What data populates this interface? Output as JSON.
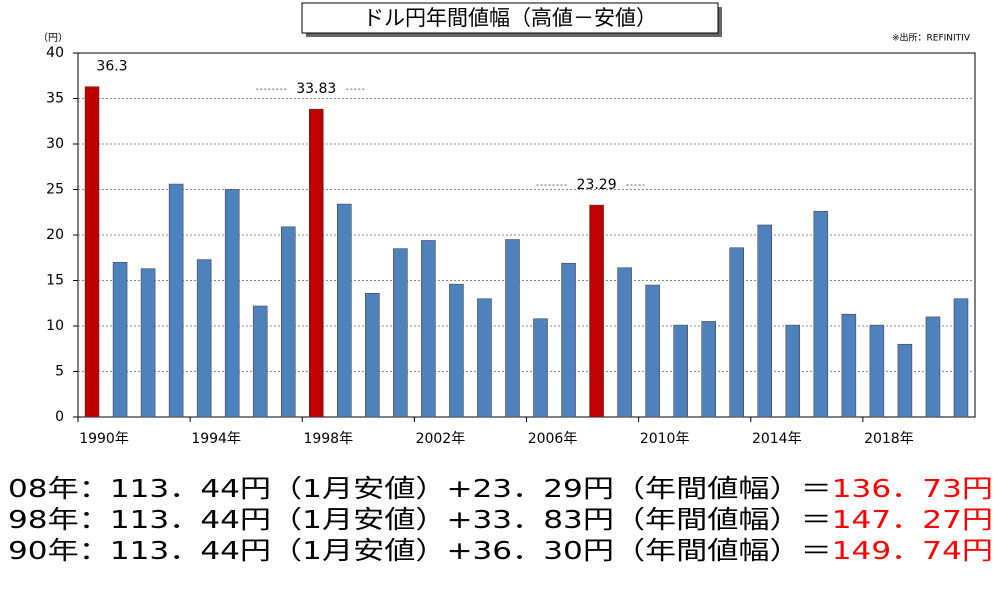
{
  "chart_data": {
    "type": "bar",
    "title": "ドル円年間値幅（高値－安値）",
    "y_unit": "（円）",
    "source": "※出所：REFINITIV",
    "categories": [
      "1990年",
      null,
      null,
      null,
      "1994年",
      null,
      null,
      null,
      "1998年",
      null,
      null,
      null,
      "2002年",
      null,
      null,
      null,
      "2006年",
      null,
      null,
      null,
      "2010年",
      null,
      null,
      null,
      "2014年",
      null,
      null,
      null,
      "2018年",
      null,
      null,
      null
    ],
    "values": [
      36.3,
      17,
      16.3,
      25.6,
      17.3,
      25,
      12.2,
      20.9,
      33.83,
      23.4,
      13.6,
      18.5,
      19.4,
      14.6,
      13,
      19.5,
      10.8,
      16.9,
      23.29,
      16.4,
      14.5,
      10.1,
      10.5,
      18.6,
      21.1,
      10.1,
      22.6,
      11.3,
      10.1,
      8,
      11,
      13
    ],
    "value_labels": [
      "36.3",
      null,
      null,
      null,
      null,
      null,
      null,
      null,
      "33.83",
      null,
      null,
      null,
      null,
      null,
      null,
      null,
      null,
      null,
      "23.29",
      null,
      null,
      null,
      null,
      null,
      null,
      null,
      null,
      null,
      null,
      null,
      null,
      null
    ],
    "colors": [
      "#c00000",
      "#4f81bd",
      "#4f81bd",
      "#4f81bd",
      "#4f81bd",
      "#4f81bd",
      "#4f81bd",
      "#4f81bd",
      "#c00000",
      "#4f81bd",
      "#4f81bd",
      "#4f81bd",
      "#4f81bd",
      "#4f81bd",
      "#4f81bd",
      "#4f81bd",
      "#4f81bd",
      "#4f81bd",
      "#c00000",
      "#4f81bd",
      "#4f81bd",
      "#4f81bd",
      "#4f81bd",
      "#4f81bd",
      "#4f81bd",
      "#4f81bd",
      "#4f81bd",
      "#4f81bd",
      "#4f81bd",
      "#4f81bd",
      "#4f81bd",
      "#4f81bd"
    ],
    "ylim": [
      0,
      40
    ],
    "yticks": [
      0,
      5,
      10,
      15,
      20,
      25,
      30,
      35,
      40
    ],
    "grid": true
  },
  "notes": [
    {
      "text": "08年：113．44円（1月安値）+23．29円（年間値幅）＝",
      "result": "136．73円"
    },
    {
      "text": "98年：113．44円（1月安値）+33．83円（年間値幅）＝",
      "result": "147．27円"
    },
    {
      "text": "90年：113．44円（1月安値）+36．30円（年間値幅）＝",
      "result": "149．74円"
    }
  ]
}
